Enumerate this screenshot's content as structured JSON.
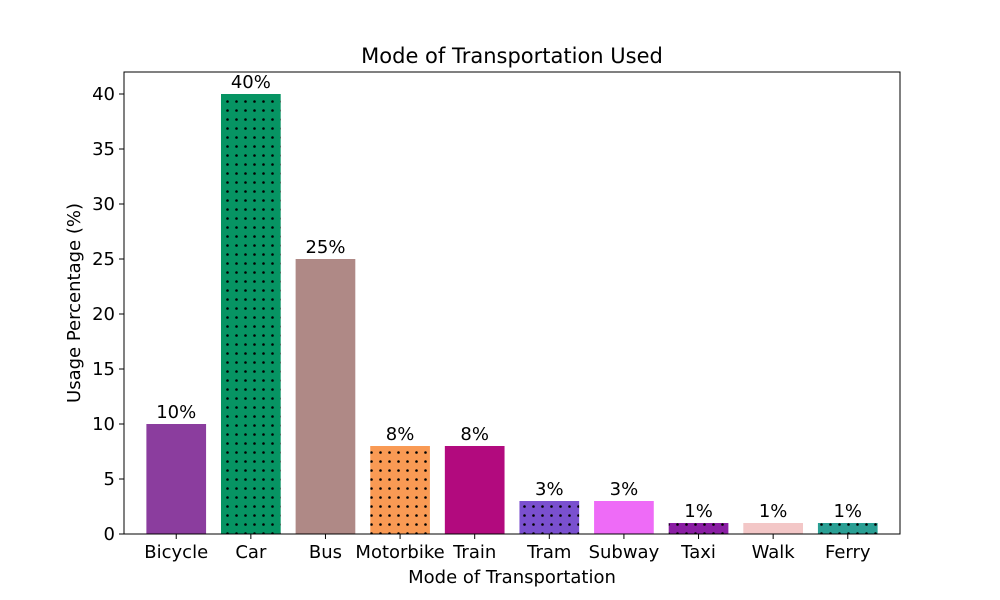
{
  "chart_data": {
    "type": "bar",
    "title": "Mode of Transportation Used",
    "xlabel": "Mode of Transportation",
    "ylabel": "Usage Percentage (%)",
    "ylim": [
      0,
      42
    ],
    "yticks": [
      0,
      5,
      10,
      15,
      20,
      25,
      30,
      35,
      40
    ],
    "grid": false,
    "legend": "none",
    "categories": [
      "Bicycle",
      "Car",
      "Bus",
      "Motorbike",
      "Train",
      "Tram",
      "Subway",
      "Taxi",
      "Walk",
      "Ferry"
    ],
    "values": [
      10,
      40,
      25,
      8,
      8,
      3,
      3,
      1,
      1,
      1
    ],
    "data_labels": [
      "10%",
      "40%",
      "25%",
      "8%",
      "8%",
      "3%",
      "3%",
      "1%",
      "1%",
      "1%"
    ],
    "colors": [
      "#8b3d9e",
      "#069463",
      "#af8986",
      "#f99a54",
      "#b20a7e",
      "#7a50cf",
      "#ee6bf7",
      "#8b1ea4",
      "#f3c7c7",
      "#2a9f94"
    ],
    "hatched": [
      false,
      true,
      false,
      true,
      false,
      true,
      false,
      true,
      false,
      true
    ]
  }
}
